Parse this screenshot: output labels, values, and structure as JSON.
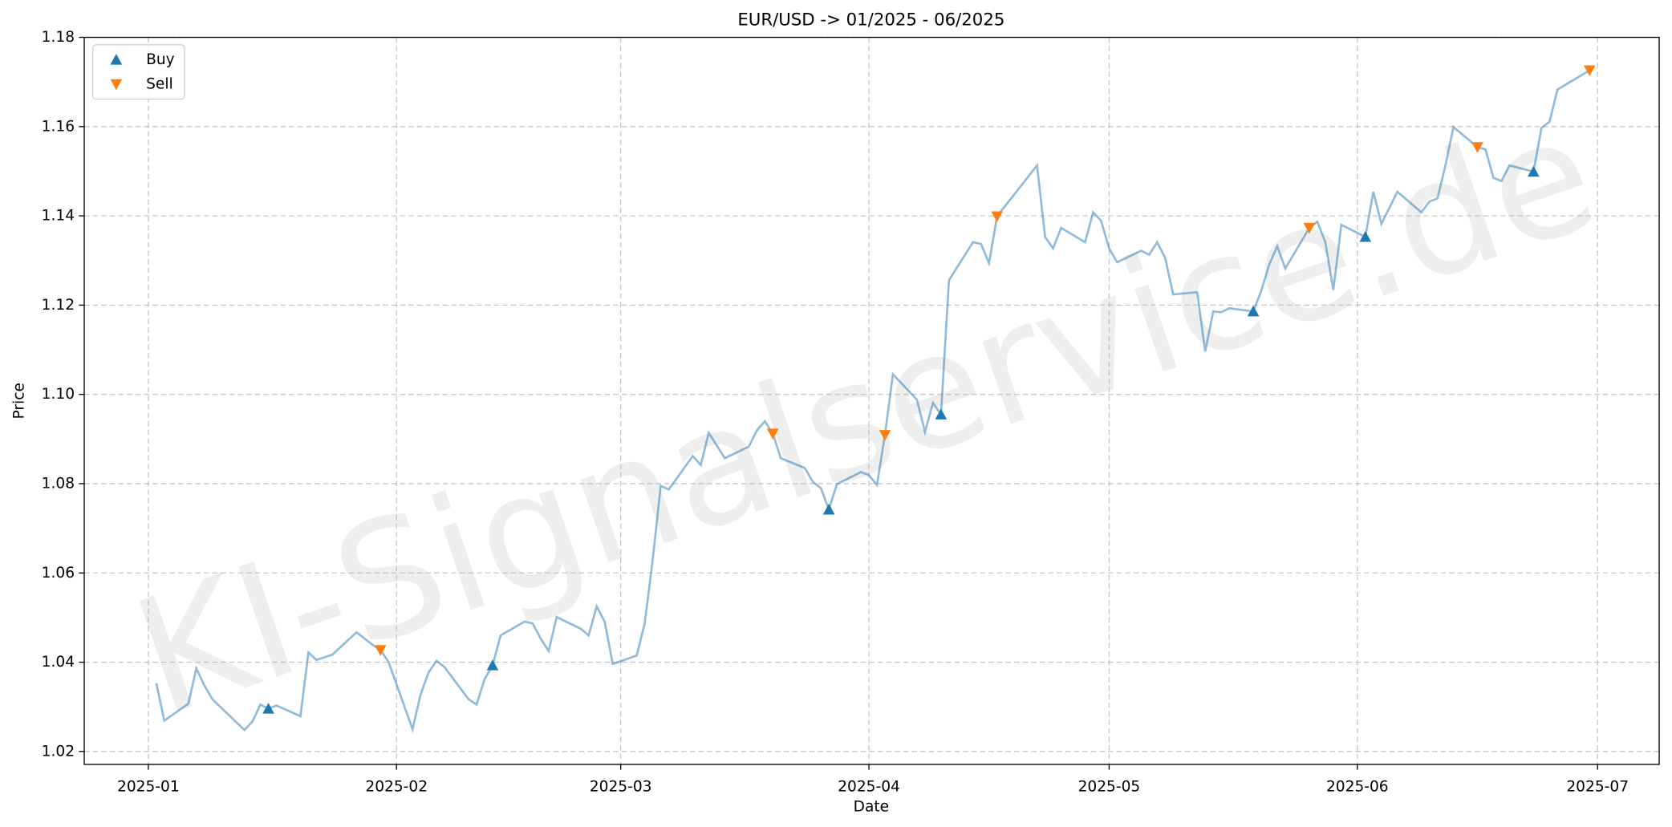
{
  "chart_data": {
    "type": "line",
    "title": "EUR/USD -> 01/2025 - 06/2025",
    "x_label": "Date",
    "y_label": "Price",
    "watermark": "KI-Signalservice.de",
    "color": "#1f77b4",
    "x": [
      1,
      2,
      5,
      6,
      7,
      8,
      12,
      13,
      14,
      15,
      16,
      19,
      20,
      21,
      23,
      26,
      28,
      29,
      30,
      33,
      34,
      35,
      36,
      37,
      40,
      41,
      42,
      43,
      44,
      47,
      48,
      49,
      50,
      51,
      54,
      55,
      56,
      57,
      58,
      61,
      62,
      63,
      64,
      65,
      68,
      69,
      70,
      72,
      75,
      76,
      77,
      78,
      79,
      82,
      83,
      84,
      85,
      86,
      89,
      90,
      91,
      92,
      93,
      96,
      97,
      98,
      99,
      100,
      103,
      104,
      105,
      106,
      111,
      112,
      113,
      114,
      117,
      118,
      119,
      120,
      121,
      124,
      125,
      126,
      127,
      128,
      131,
      132,
      133,
      134,
      135,
      138,
      139,
      140,
      141,
      142,
      145,
      146,
      147,
      148,
      149,
      152,
      153,
      154,
      156,
      159,
      160,
      161,
      162,
      163,
      166,
      167,
      168,
      169,
      170,
      173,
      174,
      175,
      176,
      180
    ],
    "values": [
      1.0353,
      1.0269,
      1.0307,
      1.0386,
      1.0348,
      1.0317,
      1.0248,
      1.0267,
      1.0305,
      1.0296,
      1.0303,
      1.0279,
      1.0422,
      1.0405,
      1.0417,
      1.0467,
      1.0439,
      1.0427,
      1.0401,
      1.025,
      1.0327,
      1.0377,
      1.0403,
      1.0389,
      1.0317,
      1.0305,
      1.0362,
      1.0393,
      1.046,
      1.0491,
      1.0487,
      1.0453,
      1.0425,
      1.0501,
      1.0475,
      1.046,
      1.0525,
      1.0491,
      1.0396,
      1.0415,
      1.0487,
      1.063,
      1.0795,
      1.0787,
      1.0862,
      1.0842,
      1.0914,
      1.0857,
      1.0883,
      1.0919,
      1.094,
      1.0912,
      1.0857,
      1.0835,
      1.0804,
      1.079,
      1.0742,
      1.0799,
      1.0826,
      1.0819,
      1.0797,
      1.0909,
      1.1045,
      1.0988,
      1.0916,
      1.0981,
      1.0955,
      1.1256,
      1.1341,
      1.1337,
      1.1294,
      1.1399,
      1.1513,
      1.1353,
      1.1327,
      1.1373,
      1.1341,
      1.1408,
      1.1389,
      1.1327,
      1.1296,
      1.1322,
      1.1313,
      1.1341,
      1.1306,
      1.1224,
      1.1229,
      1.1096,
      1.1186,
      1.1184,
      1.1193,
      1.1186,
      1.1232,
      1.1291,
      1.1332,
      1.1282,
      1.1373,
      1.1387,
      1.1341,
      1.1234,
      1.138,
      1.1353,
      1.1454,
      1.1382,
      1.1454,
      1.1408,
      1.1432,
      1.1439,
      1.1513,
      1.1599,
      1.1554,
      1.1549,
      1.1485,
      1.1478,
      1.1513,
      1.1499,
      1.1597,
      1.1611,
      1.1683,
      1.1726
    ],
    "series": [
      {
        "name": "Buy",
        "color": "#1f77b4",
        "marker": "up",
        "x": [
          15,
          43,
          85,
          99,
          138,
          152,
          173
        ],
        "values": [
          1.0296,
          1.0393,
          1.0742,
          1.0955,
          1.1186,
          1.1353,
          1.1499
        ]
      },
      {
        "name": "Sell",
        "color": "#ff7f0e",
        "marker": "down",
        "x": [
          29,
          78,
          92,
          106,
          145,
          166,
          180
        ],
        "values": [
          1.0427,
          1.0912,
          1.0909,
          1.1399,
          1.1373,
          1.1554,
          1.1726
        ]
      }
    ],
    "xlim": [
      -8,
      188.7
    ],
    "xticks": [
      {
        "value": 0,
        "label": "2025-01"
      },
      {
        "value": 31,
        "label": "2025-02"
      },
      {
        "value": 59,
        "label": "2025-03"
      },
      {
        "value": 90,
        "label": "2025-04"
      },
      {
        "value": 120,
        "label": "2025-05"
      },
      {
        "value": 151,
        "label": "2025-06"
      },
      {
        "value": 181,
        "label": "2025-07"
      }
    ],
    "ylim": [
      1.0171,
      1.18
    ],
    "yticks": [
      {
        "value": 1.02,
        "label": "1.02"
      },
      {
        "value": 1.04,
        "label": "1.04"
      },
      {
        "value": 1.06,
        "label": "1.06"
      },
      {
        "value": 1.08,
        "label": "1.08"
      },
      {
        "value": 1.1,
        "label": "1.10"
      },
      {
        "value": 1.12,
        "label": "1.12"
      },
      {
        "value": 1.14,
        "label": "1.14"
      },
      {
        "value": 1.16,
        "label": "1.16"
      },
      {
        "value": 1.18,
        "label": "1.18"
      }
    ],
    "grid": true,
    "legend": "upper-left"
  }
}
